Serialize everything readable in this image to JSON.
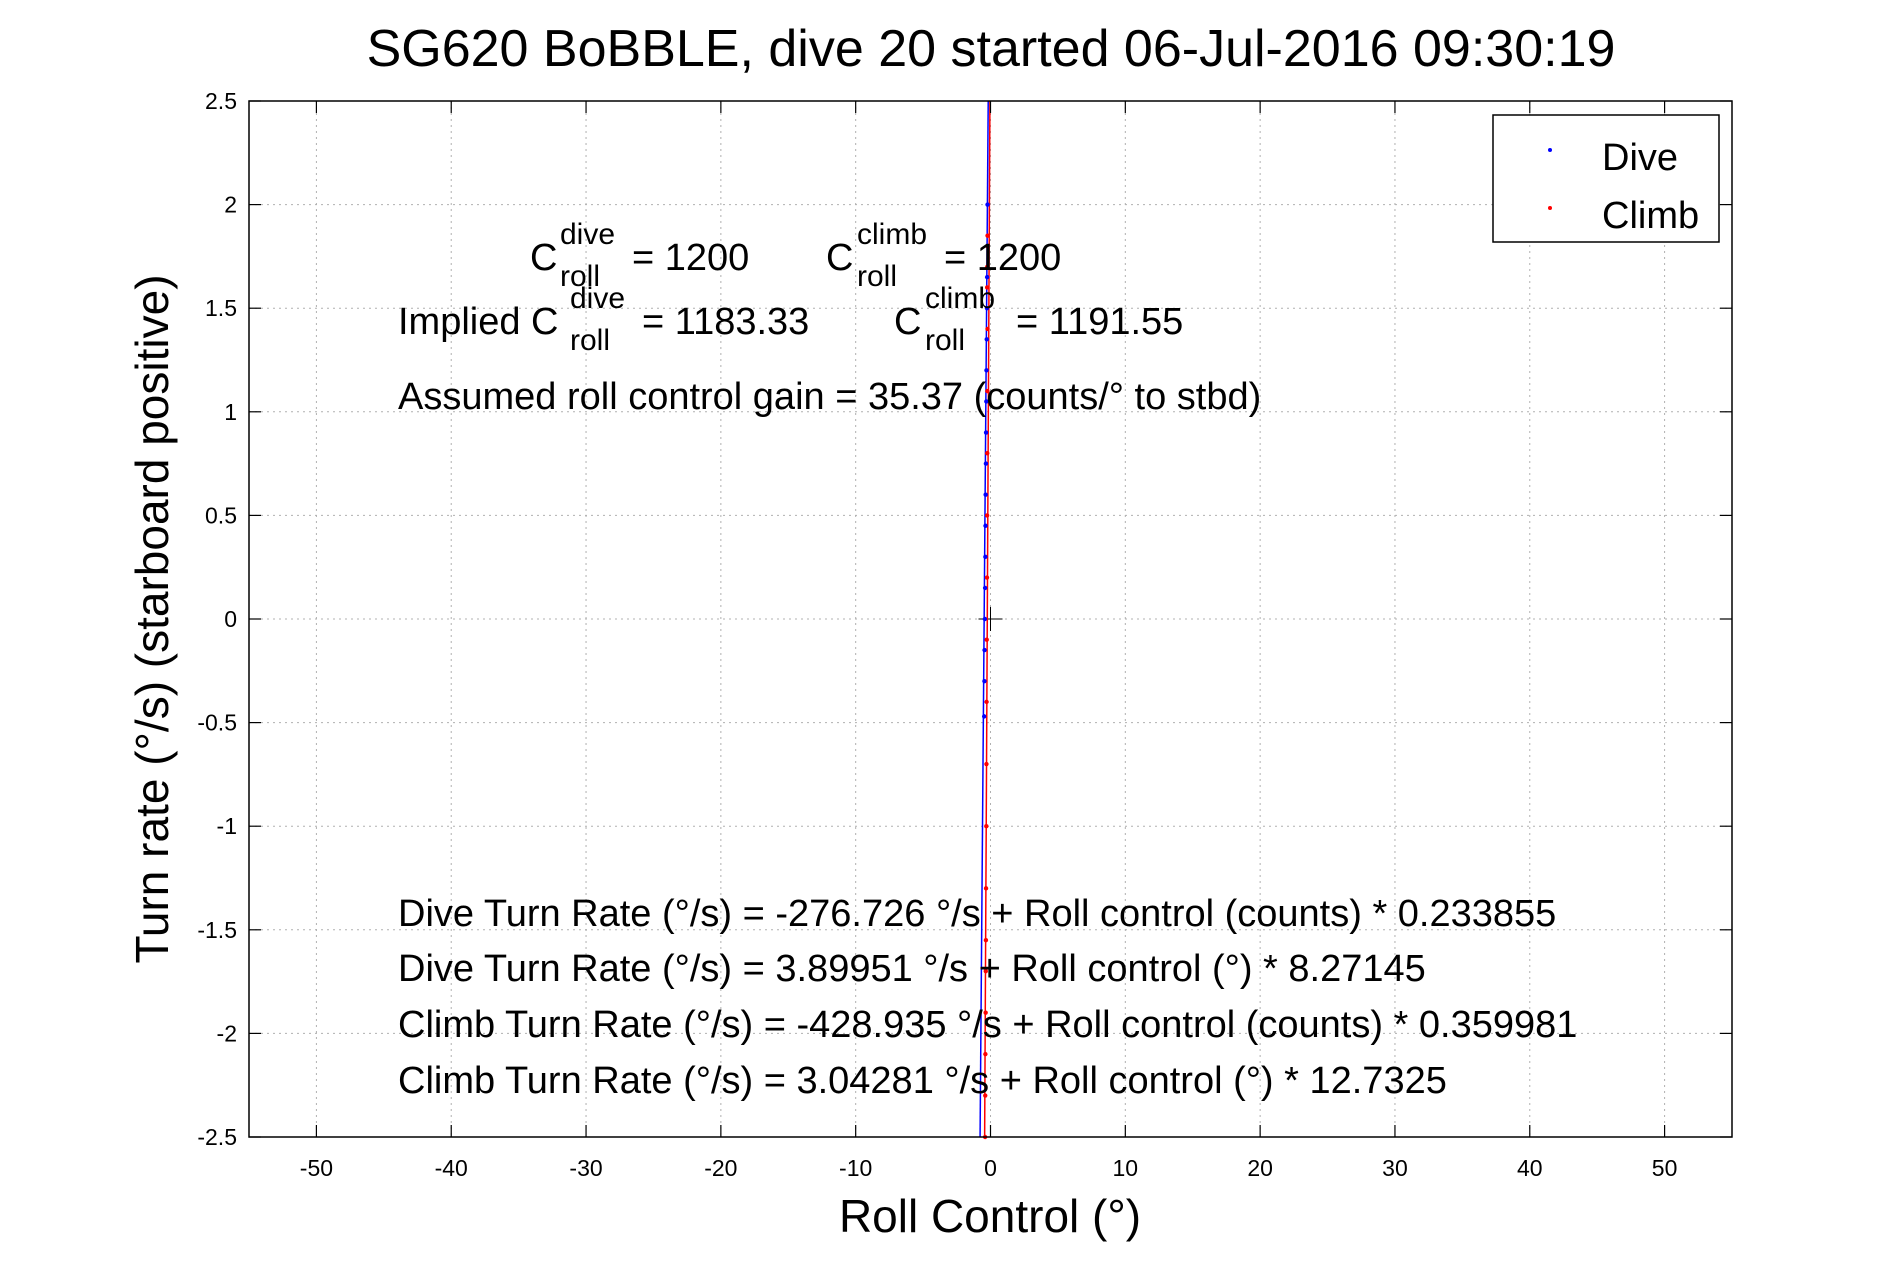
{
  "chart_data": {
    "type": "scatter",
    "title": "SG620 BoBBLE, dive 20 started 06-Jul-2016 09:30:19",
    "xlabel": "Roll Control (°)",
    "ylabel": "Turn rate (°/s) (starboard positive)",
    "xlim": [
      -55,
      55
    ],
    "ylim": [
      -2.5,
      2.5
    ],
    "x_ticks": [
      -50,
      -40,
      -30,
      -20,
      -10,
      0,
      10,
      20,
      30,
      40,
      50
    ],
    "x_tick_labels": [
      "-50",
      "-40",
      "-30",
      "-20",
      "-10",
      "0",
      "10",
      "20",
      "30",
      "40",
      "50"
    ],
    "y_ticks": [
      2.5,
      2,
      1.5,
      1,
      0.5,
      0,
      -0.5,
      -1,
      -1.5,
      -2,
      -2.5
    ],
    "y_tick_labels": [
      "2.5",
      "2",
      "1.5",
      "1",
      "0.5",
      "0",
      "-0.5",
      "-1",
      "-1.5",
      "-2",
      "-2.5"
    ],
    "grid": true,
    "legend_position": "top-right",
    "series": [
      {
        "name": "Dive",
        "color": "#0000ff",
        "x": [
          -0.47,
          -0.45,
          -0.44,
          -0.42,
          -0.4,
          -0.38,
          -0.37,
          -0.36,
          -0.34,
          -0.33,
          -0.31,
          -0.3,
          -0.28,
          -0.26,
          -0.25,
          -0.23,
          -0.22
        ],
        "y": [
          -0.47,
          -0.3,
          -0.15,
          0.0,
          0.15,
          0.3,
          0.45,
          0.6,
          0.75,
          0.9,
          1.05,
          1.2,
          1.35,
          1.5,
          1.65,
          1.8,
          2.0
        ]
      },
      {
        "name": "Climb",
        "color": "#ff0000",
        "x": [
          -0.4,
          -0.39,
          -0.38,
          -0.36,
          -0.35,
          -0.34,
          -0.33,
          -0.31,
          -0.3,
          -0.29,
          -0.28,
          -0.26,
          -0.25,
          -0.24,
          -0.23,
          -0.22,
          -0.25,
          -0.24,
          -0.23,
          -0.22
        ],
        "y": [
          -2.5,
          -2.3,
          -2.1,
          -1.9,
          -1.7,
          -1.55,
          -1.3,
          -1.0,
          -0.7,
          -0.4,
          -0.1,
          0.2,
          0.5,
          0.8,
          1.1,
          1.4,
          1.6,
          1.7,
          1.8,
          1.85
        ]
      }
    ],
    "fit_lines": [
      {
        "name": "Dive",
        "color": "#0000ff",
        "slope": 8.27145,
        "intercept": 3.89951
      },
      {
        "name": "Climb",
        "color": "#ff0000",
        "slope": 12.7325,
        "intercept": 3.04281
      }
    ],
    "annotations": {
      "c_roll_dive": {
        "base": "C",
        "sup": "dive",
        "sub": "roll",
        "value": "= 1200"
      },
      "c_roll_climb": {
        "base": "C",
        "sup": "climb",
        "sub": "roll",
        "value": "= 1200"
      },
      "implied_dive": {
        "prefix": "Implied C",
        "sup": "dive",
        "sub": "roll",
        "value": "= 1183.33"
      },
      "implied_climb": {
        "base": "C",
        "sup": "climb",
        "sub": "roll",
        "value": "= 1191.55"
      },
      "gain": "Assumed roll control gain = 35.37 (counts/° to stbd)",
      "fit1": "Dive Turn Rate (°/s) = -276.726 °/s + Roll control (counts) * 0.233855",
      "fit2": "Dive Turn Rate (°/s) = 3.89951 °/s + Roll control (°) * 8.27145",
      "fit3": "Climb Turn Rate (°/s) = -428.935 °/s + Roll control (counts) * 0.359981",
      "fit4": "Climb Turn Rate (°/s) = 3.04281 °/s + Roll control (°) * 12.7325"
    }
  }
}
